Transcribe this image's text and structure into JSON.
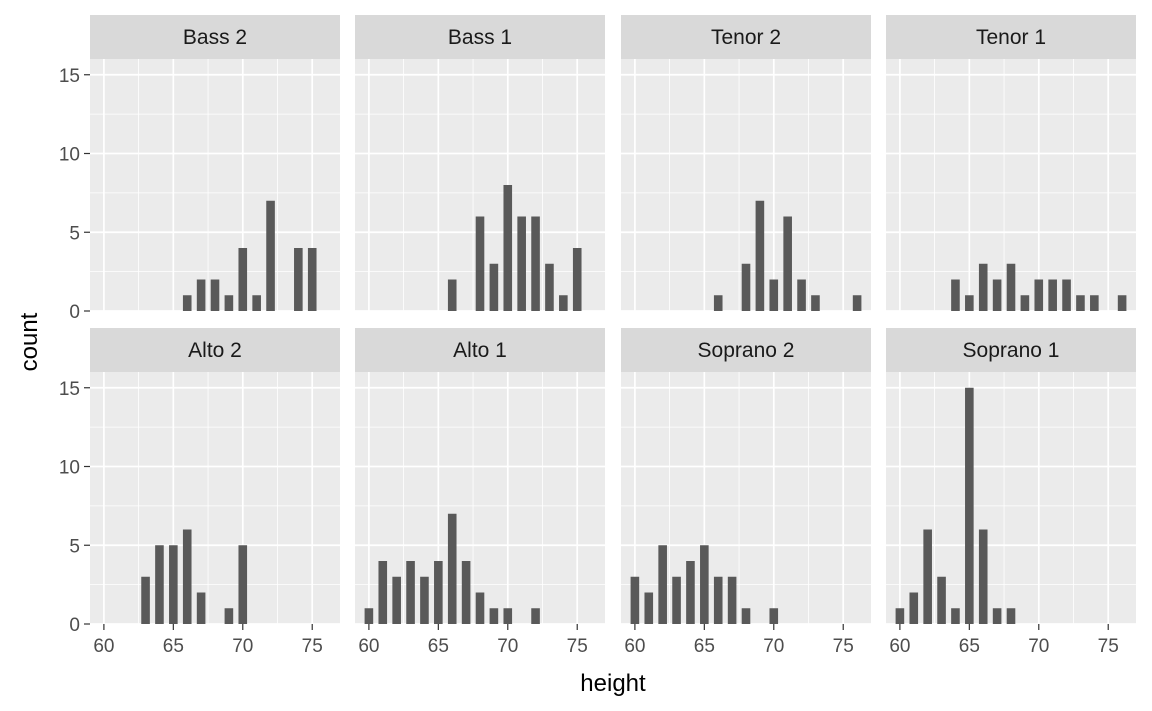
{
  "chart_data": {
    "type": "bar",
    "chart_kind": "faceted-histogram",
    "xlabel": "height",
    "ylabel": "count",
    "xlim": [
      59,
      77
    ],
    "ylim": [
      0,
      16
    ],
    "x_ticks": [
      60,
      65,
      70,
      75
    ],
    "y_ticks": [
      0,
      5,
      10,
      15
    ],
    "grid": true,
    "layout": {
      "rows": 2,
      "cols": 4
    },
    "colors": {
      "bar": "#595959",
      "panel_background": "#EBEBEB",
      "strip_background": "#D9D9D9",
      "grid": "#FFFFFF"
    },
    "facets": [
      {
        "name": "Bass 2",
        "bins": [
          {
            "x": 66,
            "count": 1
          },
          {
            "x": 67,
            "count": 2
          },
          {
            "x": 68,
            "count": 2
          },
          {
            "x": 69,
            "count": 1
          },
          {
            "x": 70,
            "count": 4
          },
          {
            "x": 71,
            "count": 1
          },
          {
            "x": 72,
            "count": 7
          },
          {
            "x": 74,
            "count": 4
          },
          {
            "x": 75,
            "count": 4
          }
        ]
      },
      {
        "name": "Bass 1",
        "bins": [
          {
            "x": 66,
            "count": 2
          },
          {
            "x": 68,
            "count": 6
          },
          {
            "x": 69,
            "count": 3
          },
          {
            "x": 70,
            "count": 8
          },
          {
            "x": 71,
            "count": 6
          },
          {
            "x": 72,
            "count": 6
          },
          {
            "x": 73,
            "count": 3
          },
          {
            "x": 74,
            "count": 1
          },
          {
            "x": 75,
            "count": 4
          }
        ]
      },
      {
        "name": "Tenor 2",
        "bins": [
          {
            "x": 66,
            "count": 1
          },
          {
            "x": 68,
            "count": 3
          },
          {
            "x": 69,
            "count": 7
          },
          {
            "x": 70,
            "count": 2
          },
          {
            "x": 71,
            "count": 6
          },
          {
            "x": 72,
            "count": 2
          },
          {
            "x": 73,
            "count": 1
          },
          {
            "x": 76,
            "count": 1
          }
        ]
      },
      {
        "name": "Tenor 1",
        "bins": [
          {
            "x": 64,
            "count": 2
          },
          {
            "x": 65,
            "count": 1
          },
          {
            "x": 66,
            "count": 3
          },
          {
            "x": 67,
            "count": 2
          },
          {
            "x": 68,
            "count": 3
          },
          {
            "x": 69,
            "count": 1
          },
          {
            "x": 70,
            "count": 2
          },
          {
            "x": 71,
            "count": 2
          },
          {
            "x": 72,
            "count": 2
          },
          {
            "x": 73,
            "count": 1
          },
          {
            "x": 74,
            "count": 1
          },
          {
            "x": 76,
            "count": 1
          }
        ]
      },
      {
        "name": "Alto 2",
        "bins": [
          {
            "x": 63,
            "count": 3
          },
          {
            "x": 64,
            "count": 5
          },
          {
            "x": 65,
            "count": 5
          },
          {
            "x": 66,
            "count": 6
          },
          {
            "x": 67,
            "count": 2
          },
          {
            "x": 69,
            "count": 1
          },
          {
            "x": 70,
            "count": 5
          }
        ]
      },
      {
        "name": "Alto 1",
        "bins": [
          {
            "x": 60,
            "count": 1
          },
          {
            "x": 61,
            "count": 4
          },
          {
            "x": 62,
            "count": 3
          },
          {
            "x": 63,
            "count": 4
          },
          {
            "x": 64,
            "count": 3
          },
          {
            "x": 65,
            "count": 4
          },
          {
            "x": 66,
            "count": 7
          },
          {
            "x": 67,
            "count": 4
          },
          {
            "x": 68,
            "count": 2
          },
          {
            "x": 69,
            "count": 1
          },
          {
            "x": 70,
            "count": 1
          },
          {
            "x": 72,
            "count": 1
          }
        ]
      },
      {
        "name": "Soprano 2",
        "bins": [
          {
            "x": 60,
            "count": 3
          },
          {
            "x": 61,
            "count": 2
          },
          {
            "x": 62,
            "count": 5
          },
          {
            "x": 63,
            "count": 3
          },
          {
            "x": 64,
            "count": 4
          },
          {
            "x": 65,
            "count": 5
          },
          {
            "x": 66,
            "count": 3
          },
          {
            "x": 67,
            "count": 3
          },
          {
            "x": 68,
            "count": 1
          },
          {
            "x": 70,
            "count": 1
          }
        ]
      },
      {
        "name": "Soprano 1",
        "bins": [
          {
            "x": 60,
            "count": 1
          },
          {
            "x": 61,
            "count": 2
          },
          {
            "x": 62,
            "count": 6
          },
          {
            "x": 63,
            "count": 3
          },
          {
            "x": 64,
            "count": 1
          },
          {
            "x": 65,
            "count": 15
          },
          {
            "x": 66,
            "count": 6
          },
          {
            "x": 67,
            "count": 1
          },
          {
            "x": 68,
            "count": 1
          }
        ]
      }
    ]
  }
}
